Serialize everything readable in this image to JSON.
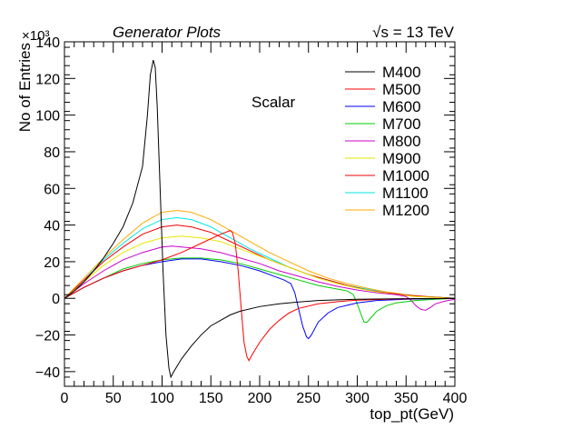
{
  "chart_data": {
    "type": "line",
    "header_left": "Generator Plots",
    "header_right": "√s = 13 TeV",
    "annotation": "Scalar",
    "xlabel": "top_pt(GeV)",
    "ylabel": "No of Entries",
    "y_multiplier": "×10³",
    "xlim": [
      0,
      400
    ],
    "ylim": [
      -48,
      140
    ],
    "x_ticks": [
      0,
      50,
      100,
      150,
      200,
      250,
      300,
      350,
      400
    ],
    "y_ticks": [
      -40,
      -20,
      0,
      20,
      40,
      60,
      80,
      100,
      120,
      140
    ],
    "grid": false,
    "legend_position": "top-right",
    "series": [
      {
        "name": "M400",
        "color": "#000000",
        "points": [
          [
            0,
            0
          ],
          [
            10,
            4
          ],
          [
            20,
            9
          ],
          [
            30,
            15
          ],
          [
            40,
            22
          ],
          [
            50,
            30
          ],
          [
            60,
            39
          ],
          [
            70,
            52
          ],
          [
            80,
            72
          ],
          [
            85,
            100
          ],
          [
            88,
            122
          ],
          [
            91,
            130
          ],
          [
            93,
            126
          ],
          [
            95,
            105
          ],
          [
            98,
            60
          ],
          [
            101,
            15
          ],
          [
            104,
            -20
          ],
          [
            107,
            -38
          ],
          [
            109,
            -43
          ],
          [
            112,
            -40
          ],
          [
            120,
            -33
          ],
          [
            130,
            -26
          ],
          [
            140,
            -20
          ],
          [
            150,
            -15
          ],
          [
            160,
            -12
          ],
          [
            170,
            -9
          ],
          [
            180,
            -7
          ],
          [
            200,
            -4.5
          ],
          [
            220,
            -3
          ],
          [
            240,
            -2
          ],
          [
            260,
            -1.2
          ],
          [
            280,
            -0.8
          ],
          [
            300,
            -0.5
          ],
          [
            350,
            -0.2
          ],
          [
            400,
            0
          ]
        ]
      },
      {
        "name": "M500",
        "color": "#ff0000",
        "points": [
          [
            0,
            0
          ],
          [
            10,
            3
          ],
          [
            20,
            6
          ],
          [
            40,
            11
          ],
          [
            60,
            15
          ],
          [
            80,
            18
          ],
          [
            100,
            21
          ],
          [
            120,
            25
          ],
          [
            140,
            30
          ],
          [
            160,
            35
          ],
          [
            170,
            37
          ],
          [
            172,
            36
          ],
          [
            175,
            30
          ],
          [
            178,
            15
          ],
          [
            181,
            -5
          ],
          [
            184,
            -24
          ],
          [
            187,
            -32
          ],
          [
            189,
            -34
          ],
          [
            192,
            -31
          ],
          [
            200,
            -24
          ],
          [
            210,
            -17
          ],
          [
            220,
            -12
          ],
          [
            230,
            -8
          ],
          [
            240,
            -5.5
          ],
          [
            260,
            -3
          ],
          [
            280,
            -1.8
          ],
          [
            300,
            -1
          ],
          [
            330,
            -0.5
          ],
          [
            360,
            -0.2
          ],
          [
            400,
            0
          ]
        ]
      },
      {
        "name": "M600",
        "color": "#0000ff",
        "points": [
          [
            0,
            0
          ],
          [
            20,
            6
          ],
          [
            40,
            11
          ],
          [
            60,
            15
          ],
          [
            80,
            18
          ],
          [
            100,
            20
          ],
          [
            120,
            21.5
          ],
          [
            140,
            21.5
          ],
          [
            160,
            20
          ],
          [
            180,
            18
          ],
          [
            200,
            15
          ],
          [
            215,
            12
          ],
          [
            225,
            10
          ],
          [
            232,
            8
          ],
          [
            236,
            3
          ],
          [
            240,
            -6
          ],
          [
            244,
            -15
          ],
          [
            248,
            -21
          ],
          [
            250,
            -22
          ],
          [
            253,
            -20
          ],
          [
            260,
            -13
          ],
          [
            270,
            -8
          ],
          [
            280,
            -5
          ],
          [
            300,
            -2.5
          ],
          [
            320,
            -1.2
          ],
          [
            350,
            -0.5
          ],
          [
            400,
            0
          ]
        ]
      },
      {
        "name": "M700",
        "color": "#00cc00",
        "points": [
          [
            0,
            0
          ],
          [
            20,
            6
          ],
          [
            40,
            11
          ],
          [
            60,
            16
          ],
          [
            80,
            19
          ],
          [
            100,
            21
          ],
          [
            120,
            22
          ],
          [
            140,
            22
          ],
          [
            160,
            21
          ],
          [
            180,
            19
          ],
          [
            200,
            16
          ],
          [
            220,
            13
          ],
          [
            240,
            10
          ],
          [
            260,
            7
          ],
          [
            280,
            5
          ],
          [
            290,
            4
          ],
          [
            296,
            2
          ],
          [
            300,
            -3
          ],
          [
            304,
            -9
          ],
          [
            307,
            -13
          ],
          [
            310,
            -13
          ],
          [
            315,
            -10
          ],
          [
            320,
            -7
          ],
          [
            330,
            -4
          ],
          [
            340,
            -2.5
          ],
          [
            360,
            -1.2
          ],
          [
            380,
            -0.5
          ],
          [
            400,
            0
          ]
        ]
      },
      {
        "name": "M800",
        "color": "#cc00cc",
        "points": [
          [
            0,
            0
          ],
          [
            20,
            8
          ],
          [
            40,
            15
          ],
          [
            60,
            21
          ],
          [
            80,
            25
          ],
          [
            100,
            28
          ],
          [
            110,
            28.5
          ],
          [
            120,
            28
          ],
          [
            140,
            27
          ],
          [
            160,
            25
          ],
          [
            180,
            22
          ],
          [
            200,
            19
          ],
          [
            220,
            15
          ],
          [
            240,
            12
          ],
          [
            260,
            9
          ],
          [
            280,
            6.5
          ],
          [
            300,
            4.5
          ],
          [
            320,
            3
          ],
          [
            340,
            2
          ],
          [
            350,
            1
          ],
          [
            355,
            -1
          ],
          [
            360,
            -4
          ],
          [
            365,
            -6
          ],
          [
            370,
            -6.5
          ],
          [
            375,
            -5
          ],
          [
            380,
            -3
          ],
          [
            390,
            -1.5
          ],
          [
            400,
            -0.5
          ]
        ]
      },
      {
        "name": "M900",
        "color": "#e6e600",
        "points": [
          [
            0,
            0
          ],
          [
            20,
            9
          ],
          [
            40,
            18
          ],
          [
            60,
            25
          ],
          [
            80,
            30
          ],
          [
            100,
            33
          ],
          [
            120,
            34
          ],
          [
            140,
            33
          ],
          [
            160,
            31
          ],
          [
            180,
            27
          ],
          [
            200,
            23
          ],
          [
            220,
            19
          ],
          [
            240,
            15
          ],
          [
            260,
            11
          ],
          [
            280,
            8
          ],
          [
            300,
            5.5
          ],
          [
            320,
            3.5
          ],
          [
            340,
            2
          ],
          [
            360,
            1
          ],
          [
            380,
            0.5
          ],
          [
            400,
            0
          ]
        ]
      },
      {
        "name": "M1000",
        "color": "#ee0000",
        "points": [
          [
            0,
            0
          ],
          [
            20,
            10
          ],
          [
            40,
            20
          ],
          [
            60,
            28
          ],
          [
            80,
            35
          ],
          [
            100,
            39
          ],
          [
            115,
            40
          ],
          [
            130,
            39
          ],
          [
            150,
            36
          ],
          [
            170,
            31
          ],
          [
            190,
            26
          ],
          [
            210,
            21
          ],
          [
            230,
            17
          ],
          [
            250,
            13
          ],
          [
            270,
            10
          ],
          [
            290,
            7
          ],
          [
            310,
            4.5
          ],
          [
            330,
            3
          ],
          [
            350,
            1.8
          ],
          [
            370,
            1
          ],
          [
            400,
            0
          ]
        ]
      },
      {
        "name": "M1100",
        "color": "#00e6e6",
        "points": [
          [
            0,
            0
          ],
          [
            20,
            10
          ],
          [
            40,
            21
          ],
          [
            60,
            30
          ],
          [
            80,
            38
          ],
          [
            100,
            43
          ],
          [
            115,
            44
          ],
          [
            130,
            43
          ],
          [
            150,
            39
          ],
          [
            170,
            33
          ],
          [
            190,
            27
          ],
          [
            210,
            22
          ],
          [
            230,
            17
          ],
          [
            250,
            13
          ],
          [
            270,
            10
          ],
          [
            290,
            7
          ],
          [
            310,
            5
          ],
          [
            330,
            3
          ],
          [
            350,
            1.8
          ],
          [
            370,
            1
          ],
          [
            400,
            0
          ]
        ]
      },
      {
        "name": "M1200",
        "color": "#ffaa00",
        "points": [
          [
            0,
            0
          ],
          [
            20,
            11
          ],
          [
            40,
            22
          ],
          [
            60,
            32
          ],
          [
            80,
            41
          ],
          [
            100,
            47
          ],
          [
            115,
            48
          ],
          [
            130,
            47
          ],
          [
            150,
            43
          ],
          [
            170,
            37
          ],
          [
            190,
            31
          ],
          [
            210,
            25
          ],
          [
            230,
            20
          ],
          [
            250,
            15
          ],
          [
            270,
            11
          ],
          [
            290,
            8
          ],
          [
            310,
            5.5
          ],
          [
            330,
            3.5
          ],
          [
            350,
            2
          ],
          [
            370,
            1
          ],
          [
            400,
            0
          ]
        ]
      }
    ]
  }
}
